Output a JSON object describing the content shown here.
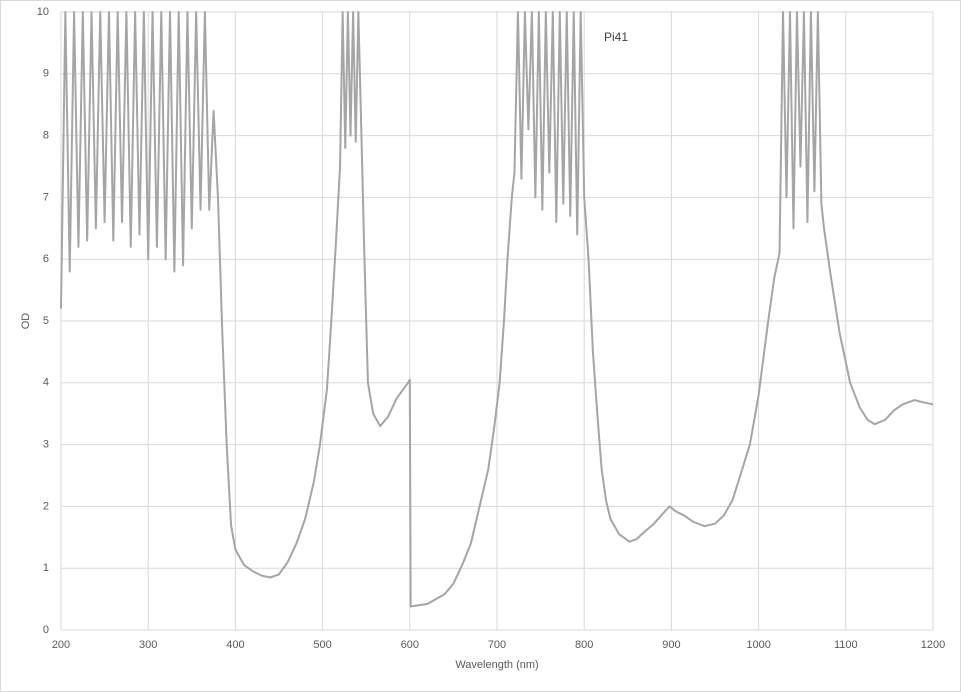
{
  "chart_data": {
    "type": "line",
    "xlabel": "Wavelength (nm)",
    "ylabel": "OD",
    "annotation": "Pi41",
    "xlim": [
      200,
      1200
    ],
    "xticks": [
      200,
      300,
      400,
      500,
      600,
      700,
      800,
      900,
      1000,
      1100,
      1200
    ],
    "ylim": [
      0,
      10
    ],
    "yticks": [
      0,
      1,
      2,
      3,
      4,
      5,
      6,
      7,
      8,
      9,
      10
    ],
    "grid": true,
    "series": [
      {
        "color": "#a5a5a5",
        "x": [
          200,
          205,
          210,
          215,
          220,
          225,
          230,
          235,
          240,
          245,
          250,
          255,
          260,
          265,
          270,
          275,
          280,
          285,
          290,
          295,
          300,
          305,
          310,
          315,
          320,
          325,
          330,
          335,
          340,
          345,
          350,
          355,
          360,
          365,
          370,
          375,
          380,
          385,
          390,
          395,
          400,
          410,
          420,
          430,
          440,
          450,
          460,
          470,
          480,
          490,
          497,
          505,
          510,
          515,
          520,
          523,
          526,
          529,
          532,
          535,
          538,
          541,
          544,
          548,
          552,
          558,
          566,
          575,
          585,
          598,
          600,
          601,
          610,
          620,
          630,
          640,
          650,
          660,
          670,
          680,
          690,
          697,
          703,
          708,
          712,
          717,
          720,
          724,
          728,
          732,
          736,
          740,
          744,
          748,
          752,
          756,
          760,
          764,
          768,
          772,
          776,
          780,
          784,
          788,
          792,
          796,
          800,
          805,
          810,
          815,
          820,
          825,
          830,
          840,
          852,
          860,
          870,
          880,
          890,
          898,
          905,
          915,
          925,
          938,
          950,
          960,
          970,
          979,
          990,
          1000,
          1011,
          1018,
          1024,
          1028,
          1032,
          1036,
          1040,
          1044,
          1048,
          1052,
          1056,
          1060,
          1064,
          1068,
          1072,
          1075,
          1082,
          1093,
          1105,
          1116,
          1125,
          1133,
          1145,
          1155,
          1165,
          1179,
          1190,
          1200
        ],
        "values": [
          5.2,
          10,
          5.8,
          10,
          6.2,
          10,
          6.3,
          10,
          6.5,
          10,
          6.6,
          10,
          6.3,
          10,
          6.6,
          10,
          6.2,
          10,
          6.4,
          10,
          6.0,
          10,
          6.2,
          10,
          6.0,
          10,
          5.8,
          10,
          5.9,
          10,
          6.5,
          10,
          6.8,
          10,
          6.8,
          8.4,
          7.0,
          4.8,
          3.0,
          1.7,
          1.3,
          1.05,
          0.95,
          0.88,
          0.85,
          0.9,
          1.1,
          1.4,
          1.8,
          2.4,
          3.0,
          3.9,
          5.0,
          6.2,
          7.5,
          10,
          7.8,
          10,
          8.0,
          10,
          7.9,
          10,
          8.3,
          6.0,
          4.0,
          3.5,
          3.3,
          3.45,
          3.75,
          4.0,
          4.05,
          0.38,
          0.4,
          0.42,
          0.5,
          0.58,
          0.75,
          1.05,
          1.4,
          2.0,
          2.6,
          3.3,
          4.0,
          5.0,
          6.0,
          7.0,
          7.4,
          10,
          7.3,
          10,
          8.1,
          10,
          7.0,
          10,
          6.8,
          10,
          7.4,
          10,
          6.6,
          10,
          6.9,
          10,
          6.7,
          10,
          6.4,
          10,
          7.0,
          6.0,
          4.5,
          3.5,
          2.6,
          2.1,
          1.8,
          1.55,
          1.43,
          1.47,
          1.6,
          1.72,
          1.88,
          2.0,
          1.92,
          1.85,
          1.75,
          1.68,
          1.72,
          1.85,
          2.1,
          2.5,
          3.0,
          3.8,
          5.0,
          5.7,
          6.1,
          10,
          7.0,
          10,
          6.5,
          10,
          7.5,
          10,
          6.6,
          10,
          7.1,
          10,
          6.9,
          6.5,
          5.8,
          4.8,
          4.0,
          3.6,
          3.4,
          3.33,
          3.4,
          3.55,
          3.65,
          3.72,
          3.68,
          3.65
        ]
      }
    ]
  }
}
